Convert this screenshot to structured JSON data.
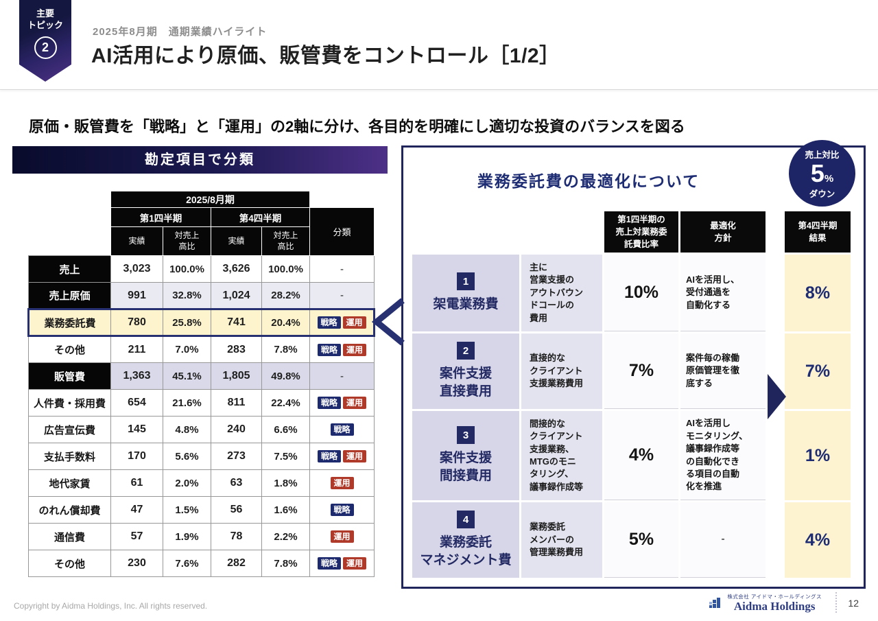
{
  "header": {
    "badge_label": "主要\nトピック",
    "badge_number": "2",
    "kicker": "2025年8月期　通期業績ハイライト",
    "title": "AI活用により原価、販管費をコントロール［1/2］"
  },
  "lead": "原価・販管費を「戦略」と「運用」の2軸に分け、各目的を明確にし適切な投資のバランスを図る",
  "colors": {
    "navy": "#1e2d73",
    "strategy_badge": "#1d2a6e",
    "operation_badge": "#b03a2a",
    "highlight_yellow": "#fdf3cd",
    "lavender": "#d6d6e8",
    "result_yellow": "#fdf3d0"
  },
  "left_panel": {
    "title": "勘定項目で分類",
    "table": {
      "period": "2025/8月期",
      "q1": "第1四半期",
      "q4": "第4四半期",
      "sub_actual": "実績",
      "sub_ratio": "対売上\n高比",
      "class_header": "分類",
      "rows": [
        {
          "label": "売上",
          "kind": "total",
          "q1a": "3,023",
          "q1r": "100.0%",
          "q4a": "3,626",
          "q4r": "100.0%",
          "dash": "-"
        },
        {
          "label": "売上原価",
          "kind": "total",
          "tint": "#eaeaf3",
          "q1a": "991",
          "q1r": "32.8%",
          "q4a": "1,024",
          "q4r": "28.2%",
          "dash": "-"
        },
        {
          "label": "業務委託費",
          "kind": "focus",
          "q1a": "780",
          "q1r": "25.8%",
          "q4a": "741",
          "q4r": "20.4%",
          "tags": [
            {
              "label": "戦略",
              "type": "strategy"
            },
            {
              "label": "運用",
              "type": "operation"
            }
          ]
        },
        {
          "label": "その他",
          "kind": "item",
          "q1a": "211",
          "q1r": "7.0%",
          "q4a": "283",
          "q4r": "7.8%",
          "tags": [
            {
              "label": "戦略",
              "type": "strategy"
            },
            {
              "label": "運用",
              "type": "operation"
            }
          ]
        },
        {
          "label": "販管費",
          "kind": "total",
          "tint": "#d9d9e9",
          "q1a": "1,363",
          "q1r": "45.1%",
          "q4a": "1,805",
          "q4r": "49.8%",
          "dash": "-"
        },
        {
          "label": "人件費・採用費",
          "kind": "item",
          "q1a": "654",
          "q1r": "21.6%",
          "q4a": "811",
          "q4r": "22.4%",
          "tags": [
            {
              "label": "戦略",
              "type": "strategy"
            },
            {
              "label": "運用",
              "type": "operation"
            }
          ]
        },
        {
          "label": "広告宣伝費",
          "kind": "item",
          "q1a": "145",
          "q1r": "4.8%",
          "q4a": "240",
          "q4r": "6.6%",
          "tags": [
            {
              "label": "戦略",
              "type": "strategy"
            }
          ]
        },
        {
          "label": "支払手数料",
          "kind": "item",
          "q1a": "170",
          "q1r": "5.6%",
          "q4a": "273",
          "q4r": "7.5%",
          "tags": [
            {
              "label": "戦略",
              "type": "strategy"
            },
            {
              "label": "運用",
              "type": "operation"
            }
          ]
        },
        {
          "label": "地代家賃",
          "kind": "item",
          "q1a": "61",
          "q1r": "2.0%",
          "q4a": "63",
          "q4r": "1.8%",
          "tags": [
            {
              "label": "運用",
              "type": "operation"
            }
          ]
        },
        {
          "label": "のれん償却費",
          "kind": "item",
          "q1a": "47",
          "q1r": "1.5%",
          "q4a": "56",
          "q4r": "1.6%",
          "tags": [
            {
              "label": "戦略",
              "type": "strategy"
            }
          ]
        },
        {
          "label": "通信費",
          "kind": "item",
          "q1a": "57",
          "q1r": "1.9%",
          "q4a": "78",
          "q4r": "2.2%",
          "tags": [
            {
              "label": "運用",
              "type": "operation"
            }
          ]
        },
        {
          "label": "その他",
          "kind": "item",
          "q1a": "230",
          "q1r": "7.6%",
          "q4a": "282",
          "q4r": "7.8%",
          "tags": [
            {
              "label": "戦略",
              "type": "strategy"
            },
            {
              "label": "運用",
              "type": "operation"
            }
          ]
        }
      ]
    }
  },
  "right_panel": {
    "title": "業務委託費の最適化について",
    "badge": {
      "top": "売上対比",
      "value": "5",
      "unit": "%",
      "bottom": "ダウン"
    },
    "table": {
      "q1_header": "第1四半期の\n売上対業務委\n託費比率",
      "policy_header": "最適化\n方針",
      "result_header": "第4四半期\n結果",
      "rows": [
        {
          "no": "1",
          "name": "架電業務費",
          "desc": "主に\n営業支援の\nアウトバウン\nドコールの\n費用",
          "q1": "10%",
          "policy": "AIを活用し、\n受付通過を\n自動化する",
          "result": "8%"
        },
        {
          "no": "2",
          "name": "案件支援\n直接費用",
          "desc": "直接的な\nクライアント\n支援業務費用",
          "q1": "7%",
          "policy": "案件毎の稼働\n原価管理を徹\n底する",
          "result": "7%"
        },
        {
          "no": "3",
          "name": "案件支援\n間接費用",
          "desc": "間接的な\nクライアント\n支援業務、\nMTGのモニ\nタリング、\n議事録作成等",
          "q1": "4%",
          "policy": "AIを活用し\nモニタリング、\n議事録作成等\nの自動化でき\nる項目の自動\n化を推進",
          "result": "1%"
        },
        {
          "no": "4",
          "name": "業務委託\nマネジメント費",
          "desc": "業務委託\nメンバーの\n管理業務費用",
          "q1": "5%",
          "policy": "-",
          "result": "4%"
        }
      ]
    }
  },
  "footer": {
    "copyright": "Copyright by Aidma Holdings, Inc. All rights reserved.",
    "company_small": "株式会社 アイドマ・ホールディングス",
    "company": "Aidma Holdings",
    "page": "12"
  }
}
